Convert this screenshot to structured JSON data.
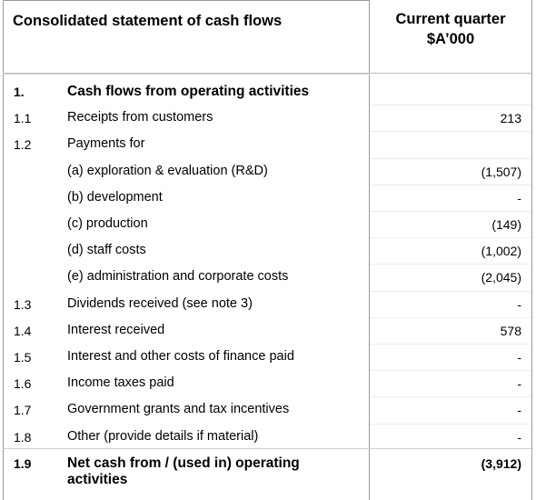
{
  "header": {
    "title": "Consolidated statement of cash flows",
    "column_line1": "Current quarter",
    "column_line2": "$A’000"
  },
  "rows": [
    {
      "num": "1.",
      "desc": "Cash flows from operating activities",
      "value": "",
      "bold": true
    },
    {
      "num": "1.1",
      "desc": "Receipts from customers",
      "value": "213",
      "bold": false
    },
    {
      "num": "1.2",
      "desc": "Payments for",
      "value": "",
      "bold": false
    },
    {
      "num": "",
      "desc": "(a)  exploration & evaluation (R&D)",
      "value": "(1,507)",
      "bold": false
    },
    {
      "num": "",
      "desc": "(b)  development",
      "value": "-",
      "bold": false
    },
    {
      "num": "",
      "desc": "(c)  production",
      "value": "(149)",
      "bold": false
    },
    {
      "num": "",
      "desc": "(d)  staff costs",
      "value": "(1,002)",
      "bold": false
    },
    {
      "num": "",
      "desc": "(e)  administration and corporate costs",
      "value": "(2,045)",
      "bold": false
    },
    {
      "num": "1.3",
      "desc": "Dividends received (see note 3)",
      "value": "-",
      "bold": false
    },
    {
      "num": "1.4",
      "desc": "Interest received",
      "value": "578",
      "bold": false
    },
    {
      "num": "1.5",
      "desc": "Interest and other costs of finance paid",
      "value": "-",
      "bold": false
    },
    {
      "num": "1.6",
      "desc": "Income taxes paid",
      "value": "-",
      "bold": false
    },
    {
      "num": "1.7",
      "desc": "Government grants and tax incentives",
      "value": "-",
      "bold": false
    },
    {
      "num": "1.8",
      "desc": "Other (provide details if material)",
      "value": "-",
      "bold": false
    },
    {
      "num": "1.9",
      "desc": "Net cash from / (used in) operating",
      "desc2": "activities",
      "value": "(3,912)",
      "bold": true
    }
  ]
}
